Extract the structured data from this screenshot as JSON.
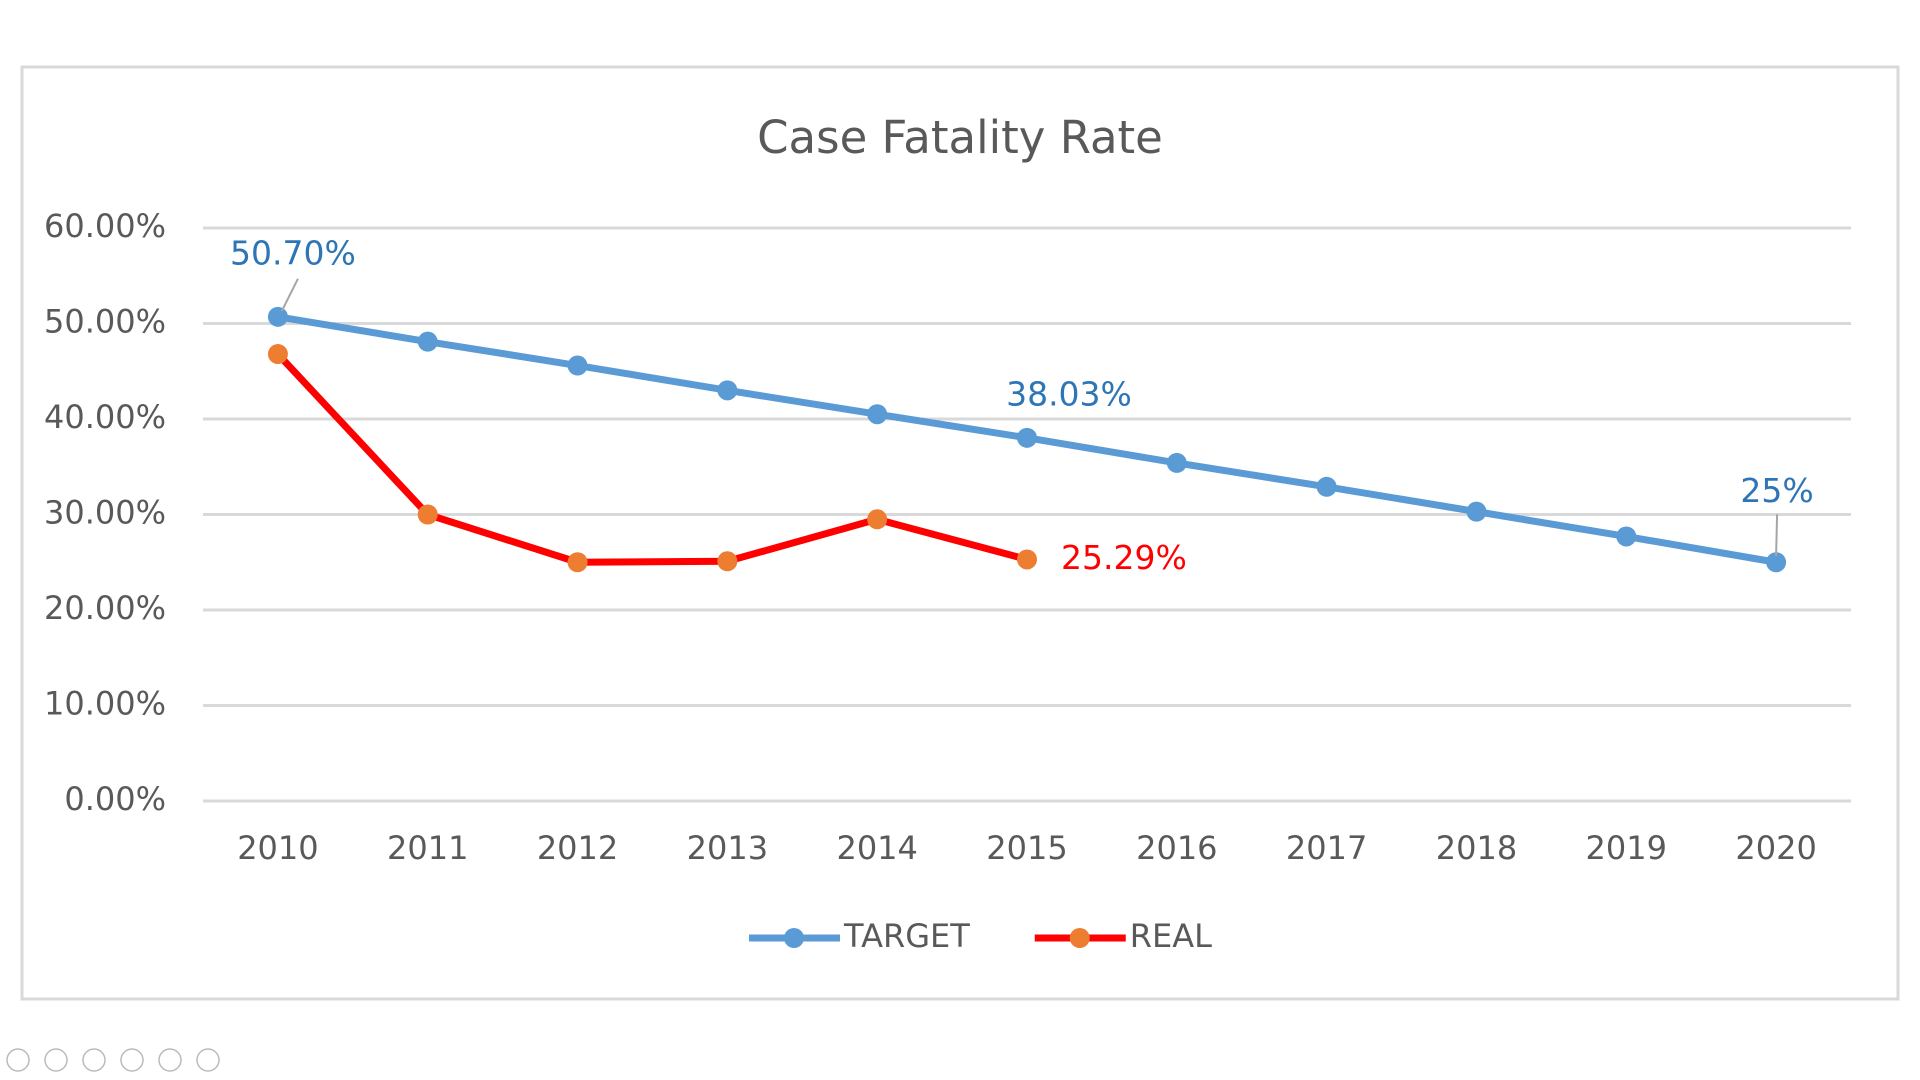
{
  "chart_data": {
    "type": "line",
    "title": "Case Fatality Rate",
    "categories": [
      "2010",
      "2011",
      "2012",
      "2013",
      "2014",
      "2015",
      "2016",
      "2017",
      "2018",
      "2019",
      "2020"
    ],
    "ylim": [
      0,
      60
    ],
    "yticks": [
      {
        "value": 0,
        "label": "0.00%"
      },
      {
        "value": 10,
        "label": "10.00%"
      },
      {
        "value": 20,
        "label": "20.00%"
      },
      {
        "value": 30,
        "label": "30.00%"
      },
      {
        "value": 40,
        "label": "40.00%"
      },
      {
        "value": 50,
        "label": "50.00%"
      },
      {
        "value": 60,
        "label": "60.00%"
      }
    ],
    "grid": true,
    "legend": "bottom",
    "series": [
      {
        "name": "TARGET",
        "color": "#5b9bd5",
        "marker_color": "#5b9bd5",
        "values": [
          50.7,
          48.1,
          45.6,
          43.0,
          40.5,
          38.03,
          35.4,
          32.9,
          30.3,
          27.7,
          25
        ],
        "value_labels": [
          "50.70%",
          null,
          null,
          null,
          null,
          "38.03%",
          null,
          null,
          null,
          null,
          "25%"
        ]
      },
      {
        "name": "REAL",
        "color": "#ff0000",
        "marker_color": "#ed7d31",
        "values": [
          46.8,
          30.0,
          25.0,
          25.1,
          29.5,
          25.29,
          null,
          null,
          null,
          null,
          null
        ],
        "value_labels": [
          null,
          null,
          null,
          null,
          null,
          "25.29%",
          null,
          null,
          null,
          null,
          null
        ]
      }
    ]
  }
}
